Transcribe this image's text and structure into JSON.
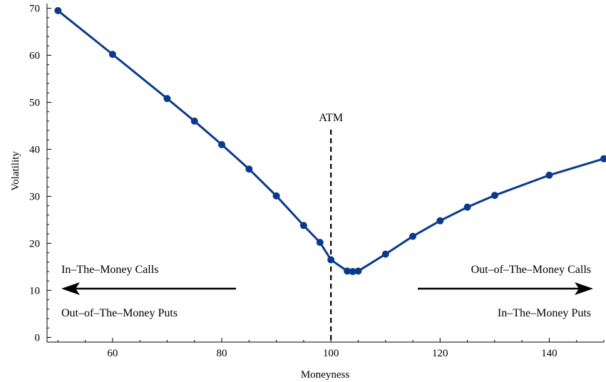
{
  "chart_data": {
    "type": "line",
    "title": "",
    "xlabel": "Moneyness",
    "ylabel": "Volatility",
    "xlim": [
      48,
      150
    ],
    "ylim": [
      -1,
      71
    ],
    "x_ticks": [
      60,
      80,
      100,
      120,
      140
    ],
    "y_ticks": [
      0,
      10,
      20,
      30,
      40,
      50,
      60,
      70
    ],
    "grid": false,
    "color": "#0b3a8c",
    "series": [
      {
        "x": [
          50,
          60,
          70,
          75,
          80,
          85,
          90,
          95,
          98,
          100,
          103,
          104,
          105,
          110,
          115,
          120,
          125,
          130,
          140,
          150
        ],
        "values": [
          69.5,
          60.2,
          50.8,
          46.0,
          41.0,
          35.8,
          30.1,
          23.8,
          20.2,
          16.5,
          14.1,
          14.0,
          14.1,
          17.7,
          21.5,
          24.8,
          27.7,
          30.2,
          34.5,
          38.0
        ]
      }
    ],
    "annotations": {
      "atm_label": "ATM",
      "atm_x": 100,
      "left_top": "In–The–Money Calls",
      "left_bottom": "Out–of–The–Money Puts",
      "right_top": "Out–of–The–Money Calls",
      "right_bottom": "In–The–Money Puts"
    }
  }
}
